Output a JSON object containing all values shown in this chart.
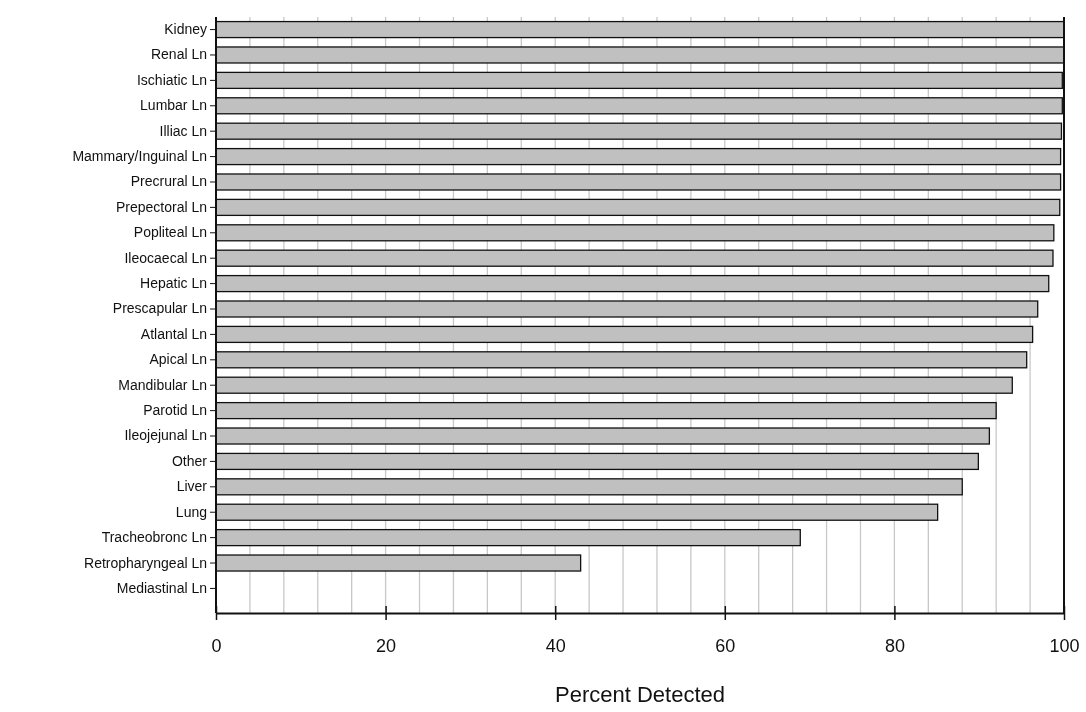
{
  "chart_data": {
    "type": "bar",
    "orientation": "horizontal",
    "xlabel": "Percent Detected",
    "categories": [
      "Kidney",
      "Renal Ln",
      "Ischiatic Ln",
      "Lumbar Ln",
      "Illiac Ln",
      "Mammary/Inguinal Ln",
      "Precrural Ln",
      "Prepectoral Ln",
      "Popliteal Ln",
      "Ileocaecal Ln",
      "Hepatic Ln",
      "Prescapular Ln",
      "Atlantal Ln",
      "Apical Ln",
      "Mandibular Ln",
      "Parotid Ln",
      "Ileojejunal Ln",
      "Other",
      "Liver",
      "Lung",
      "Tracheobronc Ln",
      "Retropharyngeal Ln",
      "Mediastinal Ln"
    ],
    "values": [
      100,
      100,
      99.8,
      99.8,
      99.7,
      99.6,
      99.6,
      99.5,
      98.8,
      98.7,
      98.2,
      96.9,
      96.3,
      95.6,
      93.9,
      92.0,
      91.2,
      89.9,
      88.0,
      85.1,
      68.9,
      43.0,
      0
    ],
    "color": "#c0c0c0",
    "xlim": [
      0,
      100
    ],
    "xticks": [
      0,
      {
        "value": 4,
        "label": null
      },
      {
        "value": 8,
        "label": null
      },
      {
        "value": 12,
        "label": null
      },
      {
        "value": 16,
        "label": null
      },
      20,
      {
        "value": 24,
        "label": null
      },
      {
        "value": 28,
        "label": null
      },
      {
        "value": 32,
        "label": null
      },
      {
        "value": 36,
        "label": null
      },
      40,
      {
        "value": 44,
        "label": null
      },
      {
        "value": 48,
        "label": null
      },
      {
        "value": 52,
        "label": null
      },
      {
        "value": 56,
        "label": null
      },
      60,
      {
        "value": 64,
        "label": null
      },
      {
        "value": 68,
        "label": null
      },
      {
        "value": 72,
        "label": null
      },
      {
        "value": 76,
        "label": null
      },
      80,
      {
        "value": 84,
        "label": null
      },
      {
        "value": 88,
        "label": null
      },
      {
        "value": 92,
        "label": null
      },
      {
        "value": 96,
        "label": null
      },
      100
    ],
    "grid": "x"
  }
}
